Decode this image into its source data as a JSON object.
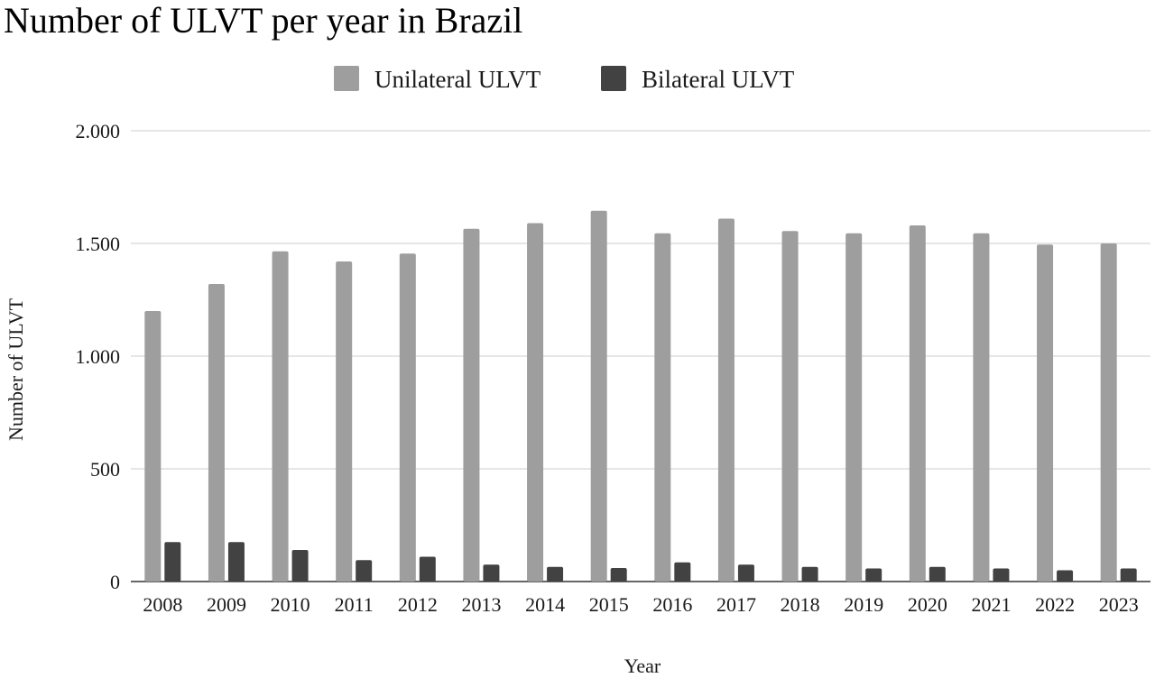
{
  "chart_data": {
    "type": "bar",
    "title": "Number of ULVT per year in Brazil",
    "xlabel": "Year",
    "ylabel": "Number of ULVT",
    "categories": [
      "2008",
      "2009",
      "2010",
      "2011",
      "2012",
      "2013",
      "2014",
      "2015",
      "2016",
      "2017",
      "2018",
      "2019",
      "2020",
      "2021",
      "2022",
      "2023"
    ],
    "series": [
      {
        "name": "Unilateral ULVT",
        "color": "#9e9e9e",
        "values": [
          1200,
          1320,
          1465,
          1420,
          1455,
          1565,
          1590,
          1645,
          1545,
          1610,
          1555,
          1545,
          1580,
          1545,
          1495,
          1500
        ]
      },
      {
        "name": "Bilateral ULVT",
        "color": "#424242",
        "values": [
          175,
          175,
          140,
          95,
          110,
          75,
          65,
          60,
          85,
          75,
          65,
          58,
          65,
          58,
          50,
          58
        ]
      }
    ],
    "ylim": [
      0,
      2000
    ],
    "yticks": [
      0,
      500,
      1000,
      1500,
      2000
    ],
    "ytick_labels": [
      "0",
      "500",
      "1.000",
      "1.500",
      "2.000"
    ],
    "grid": true,
    "legend_position": "top-center"
  }
}
